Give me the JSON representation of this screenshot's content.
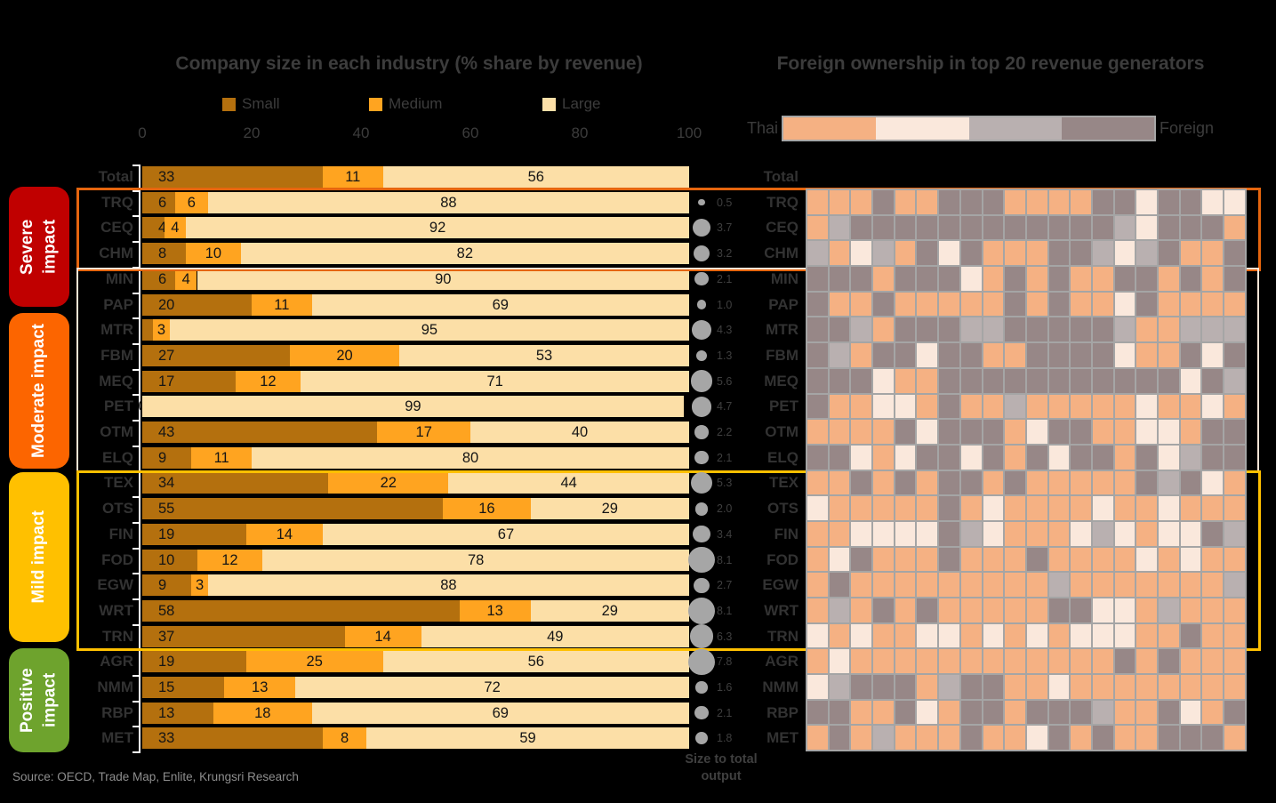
{
  "source": "Source: OECD, Trade Map, Enlite, Krungsri Research",
  "bubble_caption": "Size to total output",
  "impact_groups": [
    {
      "label": "Severe impact",
      "color": "#C00000",
      "outline_color": "#E5650E",
      "rows": [
        "TRQ",
        "CEQ",
        "CHM"
      ]
    },
    {
      "label": "Moderate impact",
      "color": "#FC6500",
      "outline_color": "#FBE5D6",
      "rows": [
        "MIN",
        "PAP",
        "MTR",
        "FBM",
        "MEQ",
        "PET",
        "OTM",
        "ELQ"
      ]
    },
    {
      "label": "Mild impact",
      "color": "#FFC000",
      "outline_color": "#FFC000",
      "rows": [
        "TEX",
        "OTS",
        "FIN",
        "FOD",
        "EGW",
        "WRT",
        "TRN"
      ]
    },
    {
      "label": "Positive impact",
      "color": "#6EA32D",
      "outline_color": null,
      "rows": [
        "AGR",
        "NMM",
        "RBP",
        "MET"
      ]
    }
  ],
  "chart_data": [
    {
      "type": "bar",
      "stacked": true,
      "orientation": "horizontal",
      "title": "Company size in each industry (% share by revenue)",
      "xlabel": "",
      "ylabel": "",
      "xlim": [
        0,
        100
      ],
      "x_ticks": [
        0,
        20,
        40,
        60,
        80,
        100
      ],
      "series_names": [
        "Small",
        "Medium",
        "Large"
      ],
      "series_colors": [
        "#B4700E",
        "#FFA420",
        "#FCDFA7"
      ],
      "bubble_legend": "Size to total output",
      "bubble_color": "#A6A6A6",
      "rows": [
        {
          "label": "Total",
          "values": [
            33,
            11,
            56
          ],
          "output": null
        },
        {
          "label": "TRQ",
          "values": [
            6,
            6,
            88
          ],
          "output": 0.5
        },
        {
          "label": "CEQ",
          "values": [
            4,
            4,
            92
          ],
          "output": 3.7
        },
        {
          "label": "CHM",
          "values": [
            8,
            10,
            82
          ],
          "output": 3.2
        },
        {
          "label": "MIN",
          "values": [
            6,
            4,
            90
          ],
          "output": 2.1
        },
        {
          "label": "PAP",
          "values": [
            20,
            11,
            69
          ],
          "output": 1.0
        },
        {
          "label": "MTR",
          "values": [
            2,
            3,
            95
          ],
          "output": 4.3
        },
        {
          "label": "FBM",
          "values": [
            27,
            20,
            53
          ],
          "output": 1.3
        },
        {
          "label": "MEQ",
          "values": [
            17,
            12,
            71
          ],
          "output": 5.6
        },
        {
          "label": "PET",
          "values": [
            0,
            0,
            99
          ],
          "output": 4.7
        },
        {
          "label": "OTM",
          "values": [
            43,
            17,
            40
          ],
          "output": 2.2
        },
        {
          "label": "ELQ",
          "values": [
            9,
            11,
            80
          ],
          "output": 2.1
        },
        {
          "label": "TEX",
          "values": [
            34,
            22,
            44
          ],
          "output": 5.3
        },
        {
          "label": "OTS",
          "values": [
            55,
            16,
            29
          ],
          "output": 2.0
        },
        {
          "label": "FIN",
          "values": [
            19,
            14,
            67
          ],
          "output": 3.4
        },
        {
          "label": "FOD",
          "values": [
            10,
            12,
            78
          ],
          "output": 8.1
        },
        {
          "label": "EGW",
          "values": [
            9,
            3,
            88
          ],
          "output": 2.7
        },
        {
          "label": "WRT",
          "values": [
            58,
            13,
            29
          ],
          "output": 8.1
        },
        {
          "label": "TRN",
          "values": [
            37,
            14,
            49
          ],
          "output": 6.3
        },
        {
          "label": "AGR",
          "values": [
            19,
            25,
            56
          ],
          "output": 7.8
        },
        {
          "label": "NMM",
          "values": [
            15,
            13,
            72
          ],
          "output": 1.6
        },
        {
          "label": "RBP",
          "values": [
            13,
            18,
            69
          ],
          "output": 2.1
        },
        {
          "label": "MET",
          "values": [
            33,
            8,
            59
          ],
          "output": 1.8
        }
      ]
    },
    {
      "type": "heatmap",
      "title": "Foreign ownership in top 20 revenue generators",
      "columns": 20,
      "legend": {
        "left_label": "Thai",
        "right_label": "Foreign",
        "colors": [
          "#F5B183",
          "#FAE8DC",
          "#B9B0B0",
          "#978787"
        ]
      },
      "color_key": {
        "O": "#F5B183",
        "C": "#FAE8DC",
        "L": "#B9B0B0",
        "D": "#978787"
      },
      "top_label": "Total",
      "rows": [
        {
          "label": "TRQ",
          "cells": "OOODOODDDOOOODDCDDCC"
        },
        {
          "label": "CEQ",
          "cells": "OLDDDDDDDDDDDDLCDDDO"
        },
        {
          "label": "CHM",
          "cells": "LOCLODCDOOODDLCLDOOD"
        },
        {
          "label": "MIN",
          "cells": "DDDODDDCODODOODDODOD"
        },
        {
          "label": "PAP",
          "cells": "DOODOOOOODODOOCDOOOO"
        },
        {
          "label": "MTR",
          "cells": "DDLODDDLLDDDDDLOOLLL"
        },
        {
          "label": "FBM",
          "cells": "DLODDCDDOODDDDCOODCD"
        },
        {
          "label": "MEQ",
          "cells": "DDDCOODDDDDDDDDDDCDL"
        },
        {
          "label": "PET",
          "cells": "DOOCCODOOLOOOOOCOOCO"
        },
        {
          "label": "OTM",
          "cells": "OOOODCDDDOCDDOOCCODD"
        },
        {
          "label": "ELQ",
          "cells": "DDCOCDDCDODCDDODCLDD"
        },
        {
          "label": "TEX",
          "cells": "OODODODDODOOOOODLDCO"
        },
        {
          "label": "OTS",
          "cells": "COOOOODOCOOOOCOOCOOO"
        },
        {
          "label": "FIN",
          "cells": "OOCCCCDLCOOOCLCOCCDL"
        },
        {
          "label": "FOD",
          "cells": "OCDOOODOOODOOOOCOCOO"
        },
        {
          "label": "EGW",
          "cells": "ODOOOOOOOOOLOOOOOOOL"
        },
        {
          "label": "WRT",
          "cells": "OLODODOOOOODDCCOLOOO"
        },
        {
          "label": "TRN",
          "cells": "COCOOCCOCOCOCCCOODOO"
        },
        {
          "label": "AGR",
          "cells": "OCOOOOOOOOOOOODODOOO"
        },
        {
          "label": "NMM",
          "cells": "CLDDDOLDDOOCOOOOOOOO"
        },
        {
          "label": "RBP",
          "cells": "DDOODCODDODDDLOODCOD"
        },
        {
          "label": "MET",
          "cells": "ODOLOOODOOCDODOODDDO"
        }
      ]
    }
  ]
}
